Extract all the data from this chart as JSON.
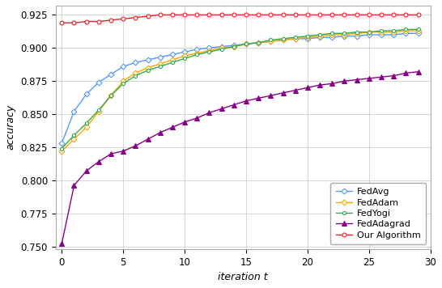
{
  "title": "",
  "xlabel": "iteration t",
  "ylabel": "accuracy",
  "xlim": [
    -0.5,
    29.5
  ],
  "ylim": [
    0.748,
    0.932
  ],
  "x": [
    0,
    1,
    2,
    3,
    4,
    5,
    6,
    7,
    8,
    9,
    10,
    11,
    12,
    13,
    14,
    15,
    16,
    17,
    18,
    19,
    20,
    21,
    22,
    23,
    24,
    25,
    26,
    27,
    28,
    29
  ],
  "FedAvg": [
    0.828,
    0.852,
    0.865,
    0.874,
    0.88,
    0.886,
    0.889,
    0.891,
    0.893,
    0.895,
    0.897,
    0.899,
    0.9,
    0.901,
    0.902,
    0.903,
    0.904,
    0.905,
    0.906,
    0.907,
    0.907,
    0.908,
    0.908,
    0.909,
    0.909,
    0.91,
    0.91,
    0.91,
    0.911,
    0.911
  ],
  "FedAdam": [
    0.822,
    0.831,
    0.84,
    0.852,
    0.864,
    0.875,
    0.881,
    0.885,
    0.888,
    0.891,
    0.894,
    0.896,
    0.898,
    0.9,
    0.901,
    0.903,
    0.904,
    0.905,
    0.906,
    0.907,
    0.908,
    0.909,
    0.91,
    0.91,
    0.911,
    0.912,
    0.912,
    0.912,
    0.913,
    0.913
  ],
  "FedYogi": [
    0.824,
    0.834,
    0.843,
    0.853,
    0.864,
    0.873,
    0.879,
    0.883,
    0.886,
    0.889,
    0.892,
    0.895,
    0.897,
    0.899,
    0.901,
    0.903,
    0.904,
    0.906,
    0.907,
    0.908,
    0.909,
    0.91,
    0.911,
    0.911,
    0.912,
    0.912,
    0.913,
    0.913,
    0.914,
    0.914
  ],
  "FedAdagrad": [
    0.752,
    0.796,
    0.807,
    0.814,
    0.82,
    0.822,
    0.826,
    0.831,
    0.836,
    0.84,
    0.844,
    0.847,
    0.851,
    0.854,
    0.857,
    0.86,
    0.862,
    0.864,
    0.866,
    0.868,
    0.87,
    0.872,
    0.873,
    0.875,
    0.876,
    0.877,
    0.878,
    0.879,
    0.881,
    0.882
  ],
  "OurAlgorithm": [
    0.919,
    0.919,
    0.92,
    0.92,
    0.921,
    0.922,
    0.923,
    0.924,
    0.925,
    0.925,
    0.925,
    0.925,
    0.925,
    0.925,
    0.925,
    0.925,
    0.925,
    0.925,
    0.925,
    0.925,
    0.925,
    0.925,
    0.925,
    0.925,
    0.925,
    0.925,
    0.925,
    0.925,
    0.925,
    0.925
  ],
  "colors": {
    "FedAvg": "#5599ff",
    "FedAdam": "#ffa500",
    "FedYogi": "#33aa55",
    "FedAdagrad": "#880088",
    "OurAlgorithm": "#ee2222"
  },
  "markers": {
    "FedAvg": "D",
    "FedAdam": "D",
    "FedYogi": "o",
    "FedAdagrad": "^",
    "OurAlgorithm": "o"
  },
  "yticks": [
    0.75,
    0.775,
    0.8,
    0.825,
    0.85,
    0.875,
    0.9,
    0.925
  ],
  "xticks": [
    0,
    5,
    10,
    15,
    20,
    25,
    30
  ]
}
